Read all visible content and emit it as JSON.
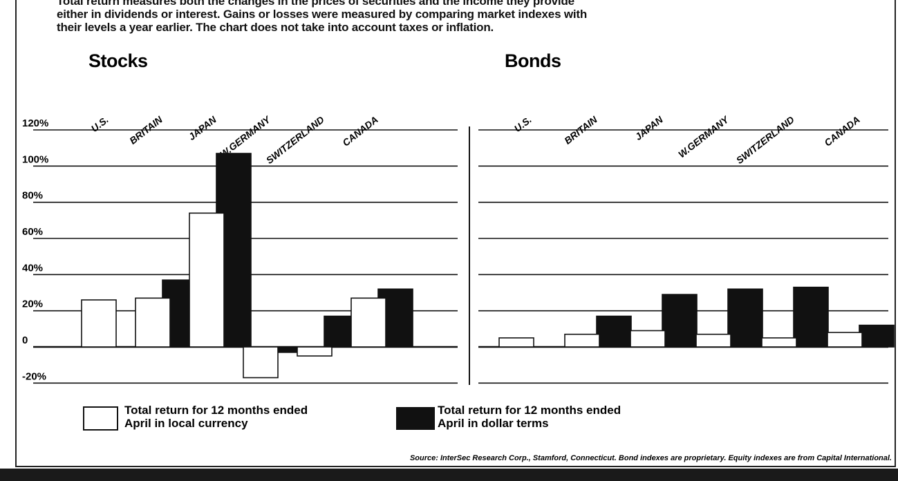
{
  "intro_lines": [
    "Total return measures both the changes in the prices of securities and the income they provide",
    "either in dividends or interest. Gains or losses were measured by comparing market indexes with",
    "their levels a year earlier. The chart does not take into account taxes or inflation."
  ],
  "chart_data": [
    {
      "type": "bar",
      "title": "Stocks",
      "categories": [
        "U.S.",
        "BRITAIN",
        "JAPAN",
        "W.GERMANY",
        "SWITZERLAND",
        "CANADA"
      ],
      "series": [
        {
          "name": "Total return for 12 months ended April in local currency",
          "values": [
            26,
            27,
            74,
            -17,
            -5,
            27
          ]
        },
        {
          "name": "Total return for 12 months ended April in dollar terms",
          "values": [
            null,
            37,
            107,
            -3,
            17,
            32
          ]
        }
      ],
      "ylim": [
        -20,
        120
      ],
      "yticks": [
        "120%",
        "100%",
        "80%",
        "60%",
        "40%",
        "20%",
        "0",
        "-20%"
      ],
      "grid": true
    },
    {
      "type": "bar",
      "title": "Bonds",
      "categories": [
        "U.S.",
        "BRITAIN",
        "JAPAN",
        "W.GERMANY",
        "SWITZERLAND",
        "CANADA"
      ],
      "series": [
        {
          "name": "Total return for 12 months ended April in local currency",
          "values": [
            5,
            7,
            9,
            7,
            5,
            8
          ]
        },
        {
          "name": "Total return for 12 months ended April in dollar terms",
          "values": [
            null,
            17,
            29,
            32,
            33,
            12
          ]
        }
      ],
      "ylim": [
        -20,
        120
      ],
      "grid": true
    }
  ],
  "legend": {
    "local_line1": "Total return for 12 months ended",
    "local_line2": "April in local currency",
    "dollar_line1": "Total return for 12 months ended",
    "dollar_line2": "April in dollar terms"
  },
  "source": "Source: InterSec Research Corp., Stamford, Connecticut. Bond indexes are proprietary. Equity indexes are from Capital International.",
  "colors": {
    "local_fill": "#ffffff",
    "dollar_fill": "#111111",
    "ink": "#111111"
  }
}
